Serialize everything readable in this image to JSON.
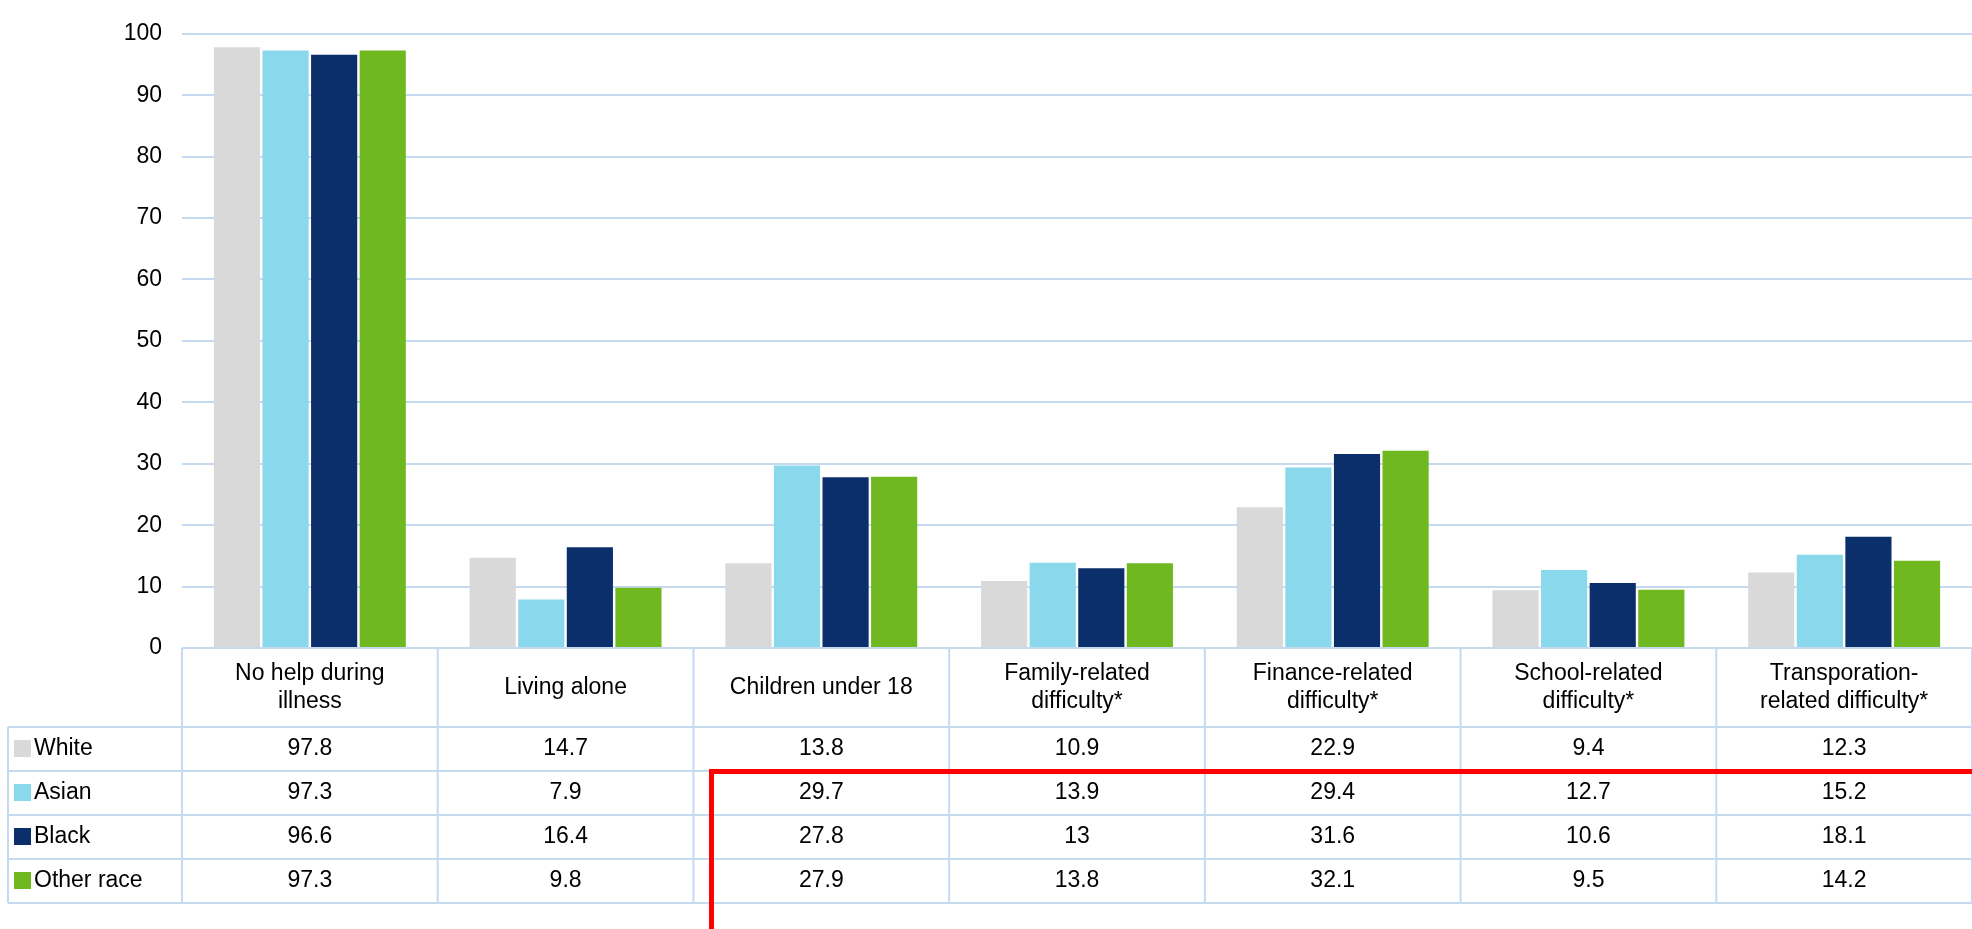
{
  "chart_data": {
    "type": "bar",
    "categories": [
      "No help during illness",
      "Living alone",
      "Children under 18",
      "Family-related difficulty*",
      "Finance-related difficulty*",
      "School-related difficulty*",
      "Transporation-related difficulty*"
    ],
    "series": [
      {
        "name": "White",
        "color": "#d9d9d9",
        "values": [
          97.8,
          14.7,
          13.8,
          10.9,
          22.9,
          9.4,
          12.3
        ]
      },
      {
        "name": "Asian",
        "color": "#8ad8eb",
        "values": [
          97.3,
          7.9,
          29.7,
          13.9,
          29.4,
          12.7,
          15.2
        ]
      },
      {
        "name": "Black",
        "color": "#0b2f6b",
        "values": [
          96.6,
          16.4,
          27.8,
          13,
          31.6,
          10.6,
          18.1
        ]
      },
      {
        "name": "Other race",
        "color": "#70b81f",
        "values": [
          97.3,
          9.8,
          27.9,
          13.8,
          32.1,
          9.5,
          14.2
        ]
      }
    ],
    "ylim": [
      0,
      100
    ],
    "yticks": [
      0,
      10,
      20,
      30,
      40,
      50,
      60,
      70,
      80,
      90,
      100
    ],
    "grid": "y",
    "legend": "bottom",
    "data_labels": true
  }
}
